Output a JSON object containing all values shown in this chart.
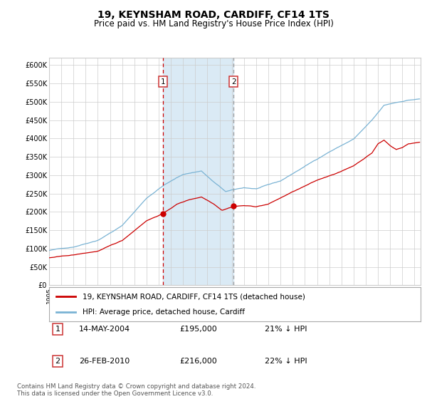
{
  "title": "19, KEYNSHAM ROAD, CARDIFF, CF14 1TS",
  "subtitle": "Price paid vs. HM Land Registry's House Price Index (HPI)",
  "title_fontsize": 10,
  "subtitle_fontsize": 8.5,
  "xlim_start": 1995.0,
  "xlim_end": 2025.5,
  "ylim": [
    0,
    620000
  ],
  "yticks": [
    0,
    50000,
    100000,
    150000,
    200000,
    250000,
    300000,
    350000,
    400000,
    450000,
    500000,
    550000,
    600000
  ],
  "hpi_color": "#7ab3d4",
  "price_color": "#cc0000",
  "shade_color": "#daeaf5",
  "vline1_color": "#cc0000",
  "vline2_color": "#999999",
  "purchase1_x": 2004.37,
  "purchase1_y": 195000,
  "purchase2_x": 2010.15,
  "purchase2_y": 216000,
  "shade_x1": 2004.37,
  "shade_x2": 2010.15,
  "legend_property_label": "19, KEYNSHAM ROAD, CARDIFF, CF14 1TS (detached house)",
  "legend_hpi_label": "HPI: Average price, detached house, Cardiff",
  "annotation1_label": "1",
  "annotation2_label": "2",
  "table_rows": [
    {
      "num": "1",
      "date": "14-MAY-2004",
      "price": "£195,000",
      "hpi": "21% ↓ HPI"
    },
    {
      "num": "2",
      "date": "26-FEB-2010",
      "price": "£216,000",
      "hpi": "22% ↓ HPI"
    }
  ],
  "footer": "Contains HM Land Registry data © Crown copyright and database right 2024.\nThis data is licensed under the Open Government Licence v3.0.",
  "background_color": "#ffffff",
  "grid_color": "#cccccc"
}
